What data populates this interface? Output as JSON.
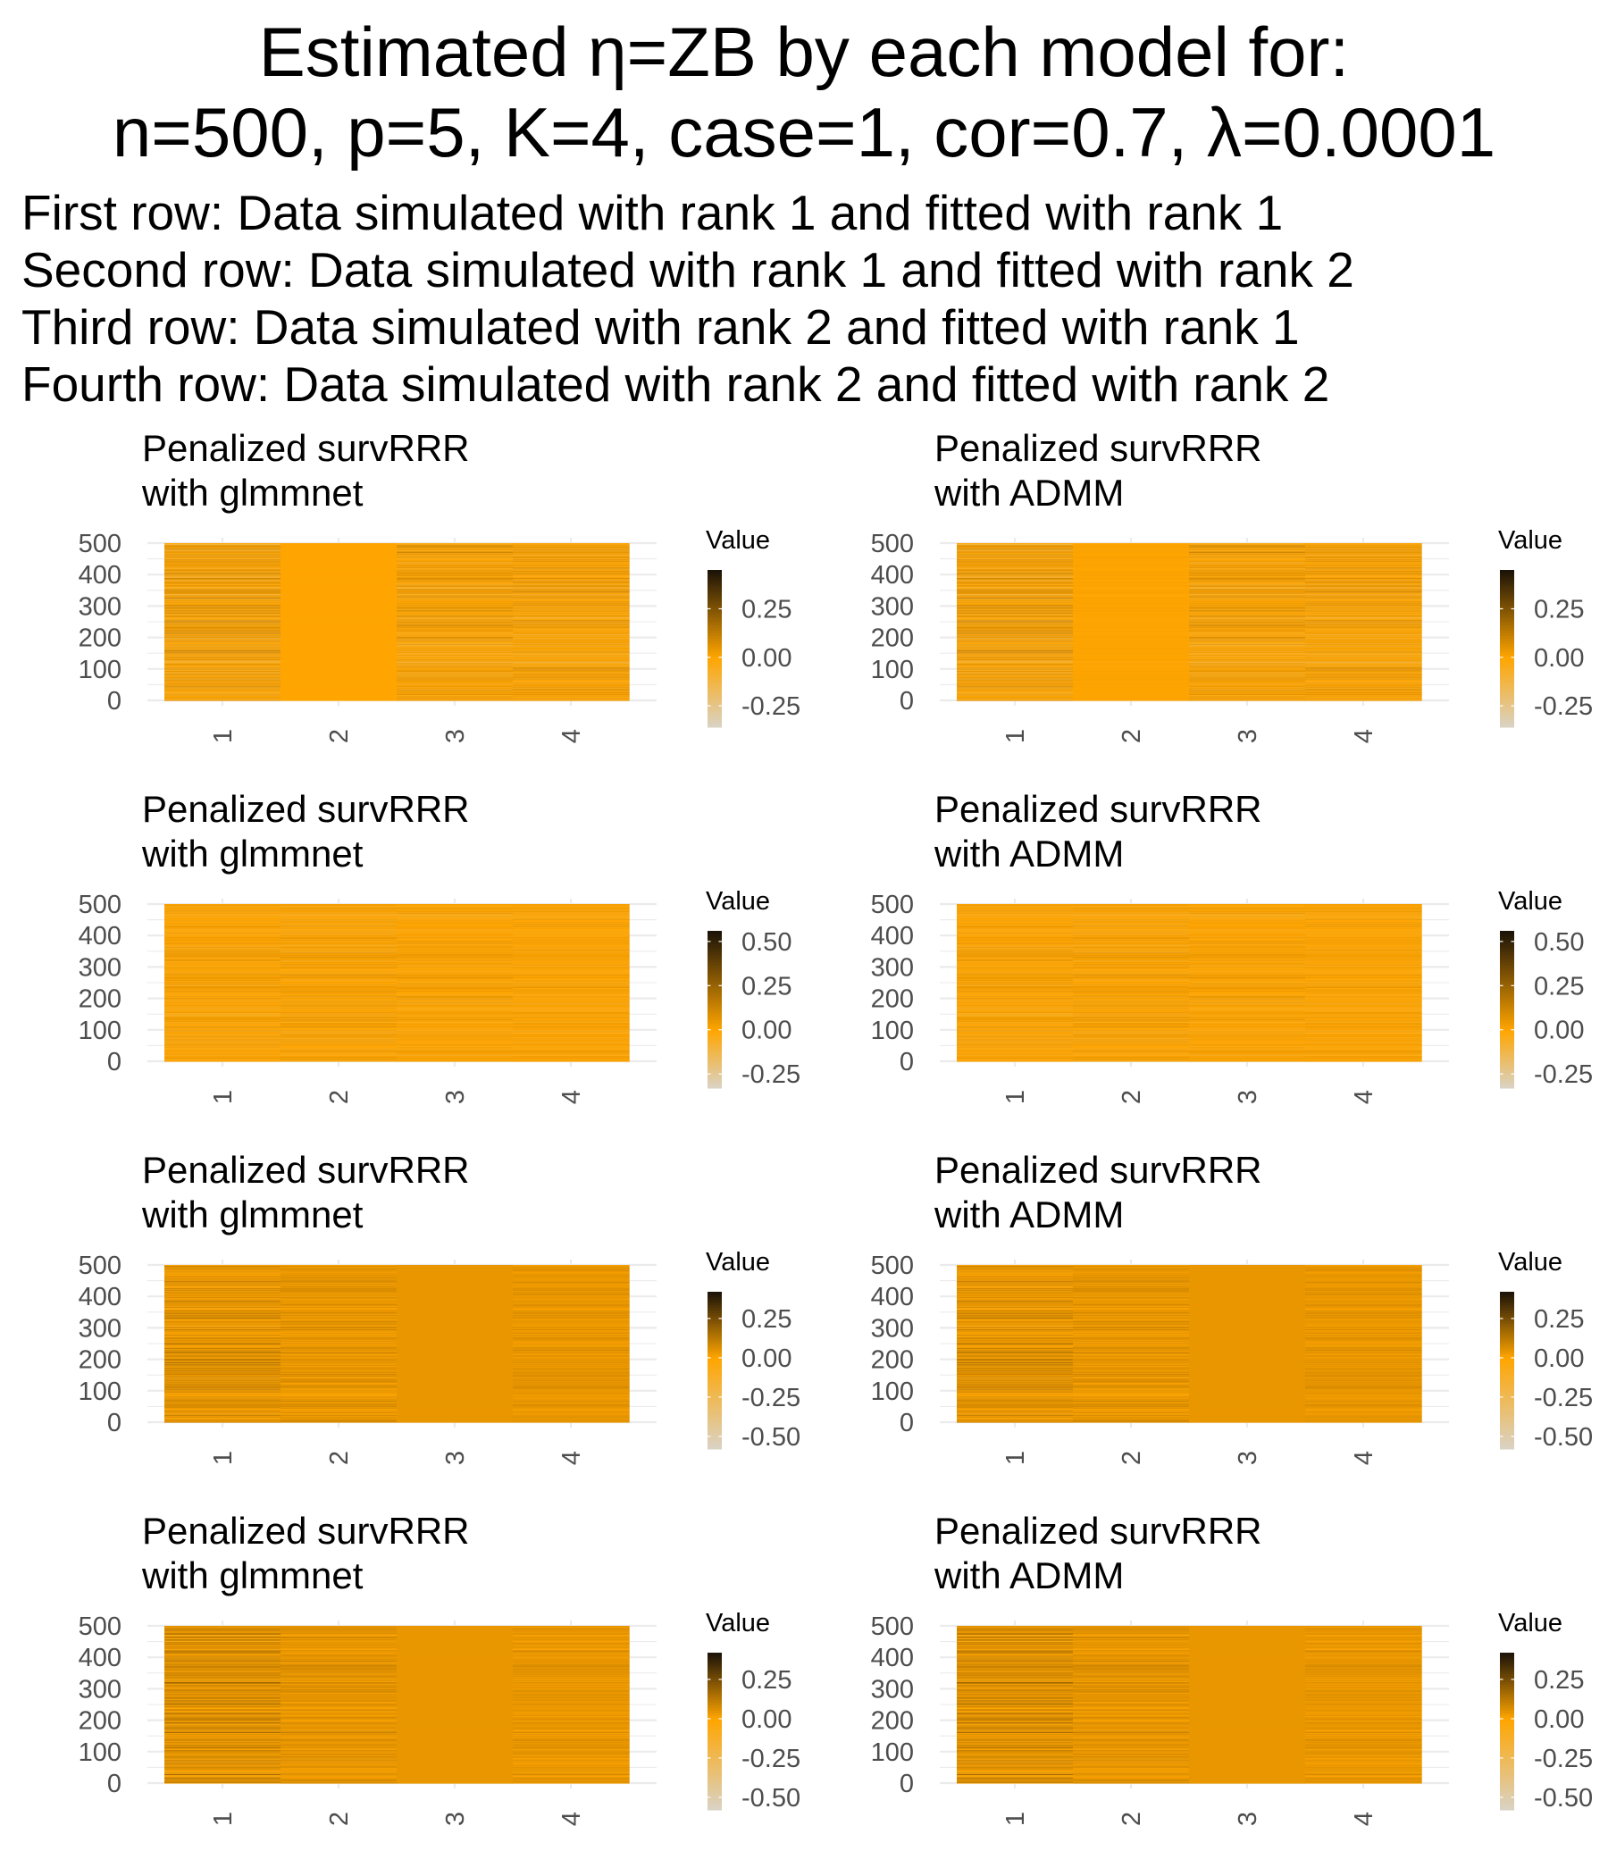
{
  "title_lines": [
    "Estimated η=ZB by each model for:",
    "n=500, p=5, K=4, case=1, cor=0.7, λ=0.0001"
  ],
  "subtitle_lines": [
    "First row: Data simulated with rank 1 and fitted with rank 1",
    "Second row: Data simulated with rank 1 and fitted with rank 2",
    "Third row: Data simulated with rank 2 and fitted with rank 1",
    "Fourth row: Data simulated with rank 2 and fitted with rank 2"
  ],
  "colors": {
    "low": "#d9d3c6",
    "mid": "#ffa500",
    "high": "#1a1208",
    "grid": "#ebebeb",
    "tick_text": "#4d4d4d"
  },
  "chart_data": [
    {
      "type": "heatmap",
      "row": 1,
      "panel": "left",
      "title_lines": [
        "Penalized survRRR",
        "with glmmnet"
      ],
      "x_categories": [
        "1",
        "2",
        "3",
        "4"
      ],
      "y_ticks": [
        0,
        100,
        200,
        300,
        400,
        500
      ],
      "ylim": [
        0,
        500
      ],
      "legend_title": "Value",
      "legend_ticks": [
        0.25,
        0.0,
        -0.25
      ],
      "legend_tick_labels": [
        "0.25",
        "0.00",
        "-0.25"
      ],
      "value_range": [
        -0.36,
        0.45
      ],
      "column_spread": [
        0.16,
        0.0,
        0.13,
        0.13
      ],
      "column_center": [
        0.0,
        0.0,
        0.0,
        0.0
      ],
      "seed": 11
    },
    {
      "type": "heatmap",
      "row": 1,
      "panel": "right",
      "title_lines": [
        "Penalized survRRR",
        "with ADMM"
      ],
      "x_categories": [
        "1",
        "2",
        "3",
        "4"
      ],
      "y_ticks": [
        0,
        100,
        200,
        300,
        400,
        500
      ],
      "ylim": [
        0,
        500
      ],
      "legend_title": "Value",
      "legend_ticks": [
        0.25,
        0.0,
        -0.25
      ],
      "legend_tick_labels": [
        "0.25",
        "0.00",
        "-0.25"
      ],
      "value_range": [
        -0.36,
        0.45
      ],
      "column_spread": [
        0.16,
        0.02,
        0.13,
        0.13
      ],
      "column_center": [
        0.0,
        0.0,
        0.0,
        0.0
      ],
      "seed": 11
    },
    {
      "type": "heatmap",
      "row": 2,
      "panel": "left",
      "title_lines": [
        "Penalized survRRR",
        "with glmmnet"
      ],
      "x_categories": [
        "1",
        "2",
        "3",
        "4"
      ],
      "y_ticks": [
        0,
        100,
        200,
        300,
        400,
        500
      ],
      "ylim": [
        0,
        500
      ],
      "legend_title": "Value",
      "legend_ticks": [
        0.5,
        0.25,
        0.0,
        -0.25
      ],
      "legend_tick_labels": [
        "0.50",
        "0.25",
        "0.00",
        "-0.25"
      ],
      "value_range": [
        -0.33,
        0.56
      ],
      "column_spread": [
        0.1,
        0.1,
        0.09,
        0.08
      ],
      "column_center": [
        0.0,
        0.0,
        0.0,
        0.0
      ],
      "seed": 23
    },
    {
      "type": "heatmap",
      "row": 2,
      "panel": "right",
      "title_lines": [
        "Penalized survRRR",
        "with ADMM"
      ],
      "x_categories": [
        "1",
        "2",
        "3",
        "4"
      ],
      "y_ticks": [
        0,
        100,
        200,
        300,
        400,
        500
      ],
      "ylim": [
        0,
        500
      ],
      "legend_title": "Value",
      "legend_ticks": [
        0.5,
        0.25,
        0.0,
        -0.25
      ],
      "legend_tick_labels": [
        "0.50",
        "0.25",
        "0.00",
        "-0.25"
      ],
      "value_range": [
        -0.33,
        0.56
      ],
      "column_spread": [
        0.1,
        0.1,
        0.09,
        0.08
      ],
      "column_center": [
        0.0,
        0.0,
        0.0,
        0.0
      ],
      "seed": 23
    },
    {
      "type": "heatmap",
      "row": 3,
      "panel": "left",
      "title_lines": [
        "Penalized survRRR",
        "with glmmnet"
      ],
      "x_categories": [
        "1",
        "2",
        "3",
        "4"
      ],
      "y_ticks": [
        0,
        100,
        200,
        300,
        400,
        500
      ],
      "ylim": [
        0,
        500
      ],
      "legend_title": "Value",
      "legend_ticks": [
        0.25,
        0.0,
        -0.25,
        -0.5
      ],
      "legend_tick_labels": [
        "0.25",
        "0.00",
        "-0.25",
        "-0.50"
      ],
      "value_range": [
        -0.58,
        0.42
      ],
      "column_spread": [
        0.14,
        0.09,
        0.0,
        0.06
      ],
      "column_center": [
        0.04,
        0.04,
        0.04,
        0.04
      ],
      "seed": 37
    },
    {
      "type": "heatmap",
      "row": 3,
      "panel": "right",
      "title_lines": [
        "Penalized survRRR",
        "with ADMM"
      ],
      "x_categories": [
        "1",
        "2",
        "3",
        "4"
      ],
      "y_ticks": [
        0,
        100,
        200,
        300,
        400,
        500
      ],
      "ylim": [
        0,
        500
      ],
      "legend_title": "Value",
      "legend_ticks": [
        0.25,
        0.0,
        -0.25,
        -0.5
      ],
      "legend_tick_labels": [
        "0.25",
        "0.00",
        "-0.25",
        "-0.50"
      ],
      "value_range": [
        -0.58,
        0.42
      ],
      "column_spread": [
        0.14,
        0.09,
        0.0,
        0.06
      ],
      "column_center": [
        0.04,
        0.04,
        0.04,
        0.04
      ],
      "seed": 37
    },
    {
      "type": "heatmap",
      "row": 4,
      "panel": "left",
      "title_lines": [
        "Penalized survRRR",
        "with glmmnet"
      ],
      "x_categories": [
        "1",
        "2",
        "3",
        "4"
      ],
      "y_ticks": [
        0,
        100,
        200,
        300,
        400,
        500
      ],
      "ylim": [
        0,
        500
      ],
      "legend_title": "Value",
      "legend_ticks": [
        0.25,
        0.0,
        -0.25,
        -0.5
      ],
      "legend_tick_labels": [
        "0.25",
        "0.00",
        "-0.25",
        "-0.50"
      ],
      "value_range": [
        -0.58,
        0.42
      ],
      "column_spread": [
        0.16,
        0.09,
        0.0,
        0.06
      ],
      "column_center": [
        0.05,
        0.04,
        0.04,
        0.04
      ],
      "seed": 53
    },
    {
      "type": "heatmap",
      "row": 4,
      "panel": "right",
      "title_lines": [
        "Penalized survRRR",
        "with ADMM"
      ],
      "x_categories": [
        "1",
        "2",
        "3",
        "4"
      ],
      "y_ticks": [
        0,
        100,
        200,
        300,
        400,
        500
      ],
      "ylim": [
        0,
        500
      ],
      "legend_title": "Value",
      "legend_ticks": [
        0.25,
        0.0,
        -0.25,
        -0.5
      ],
      "legend_tick_labels": [
        "0.25",
        "0.00",
        "-0.25",
        "-0.50"
      ],
      "value_range": [
        -0.58,
        0.42
      ],
      "column_spread": [
        0.16,
        0.09,
        0.0,
        0.06
      ],
      "column_center": [
        0.05,
        0.04,
        0.04,
        0.04
      ],
      "seed": 53
    }
  ]
}
